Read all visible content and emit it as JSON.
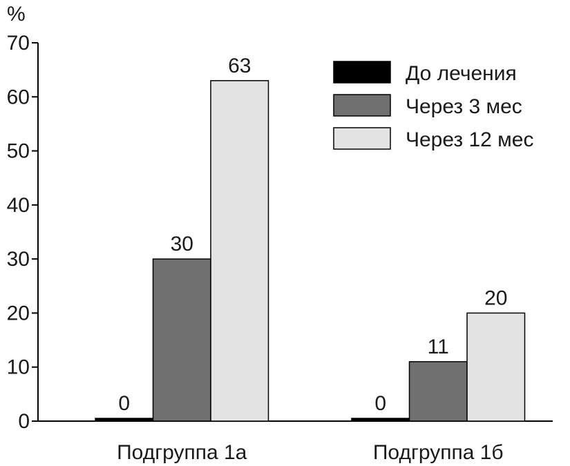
{
  "chart_data": {
    "type": "bar",
    "ylabel": "%",
    "ylim": [
      0,
      70
    ],
    "yticks": [
      0,
      10,
      20,
      30,
      40,
      50,
      60,
      70
    ],
    "categories": [
      "Подгруппа 1а",
      "Подгруппа 1б"
    ],
    "series": [
      {
        "name": "До лечения",
        "values": [
          0,
          0
        ],
        "labels": [
          "0",
          "0"
        ],
        "color": "#000000"
      },
      {
        "name": "Через 3 мес",
        "values": [
          30,
          11
        ],
        "labels": [
          "30",
          "11"
        ],
        "color": "#707070"
      },
      {
        "name": "Через 12 мес",
        "values": [
          63,
          20
        ],
        "labels": [
          "63",
          "20"
        ],
        "color": "#e3e3e3"
      }
    ],
    "legend_position": "top-right",
    "grid": false
  }
}
